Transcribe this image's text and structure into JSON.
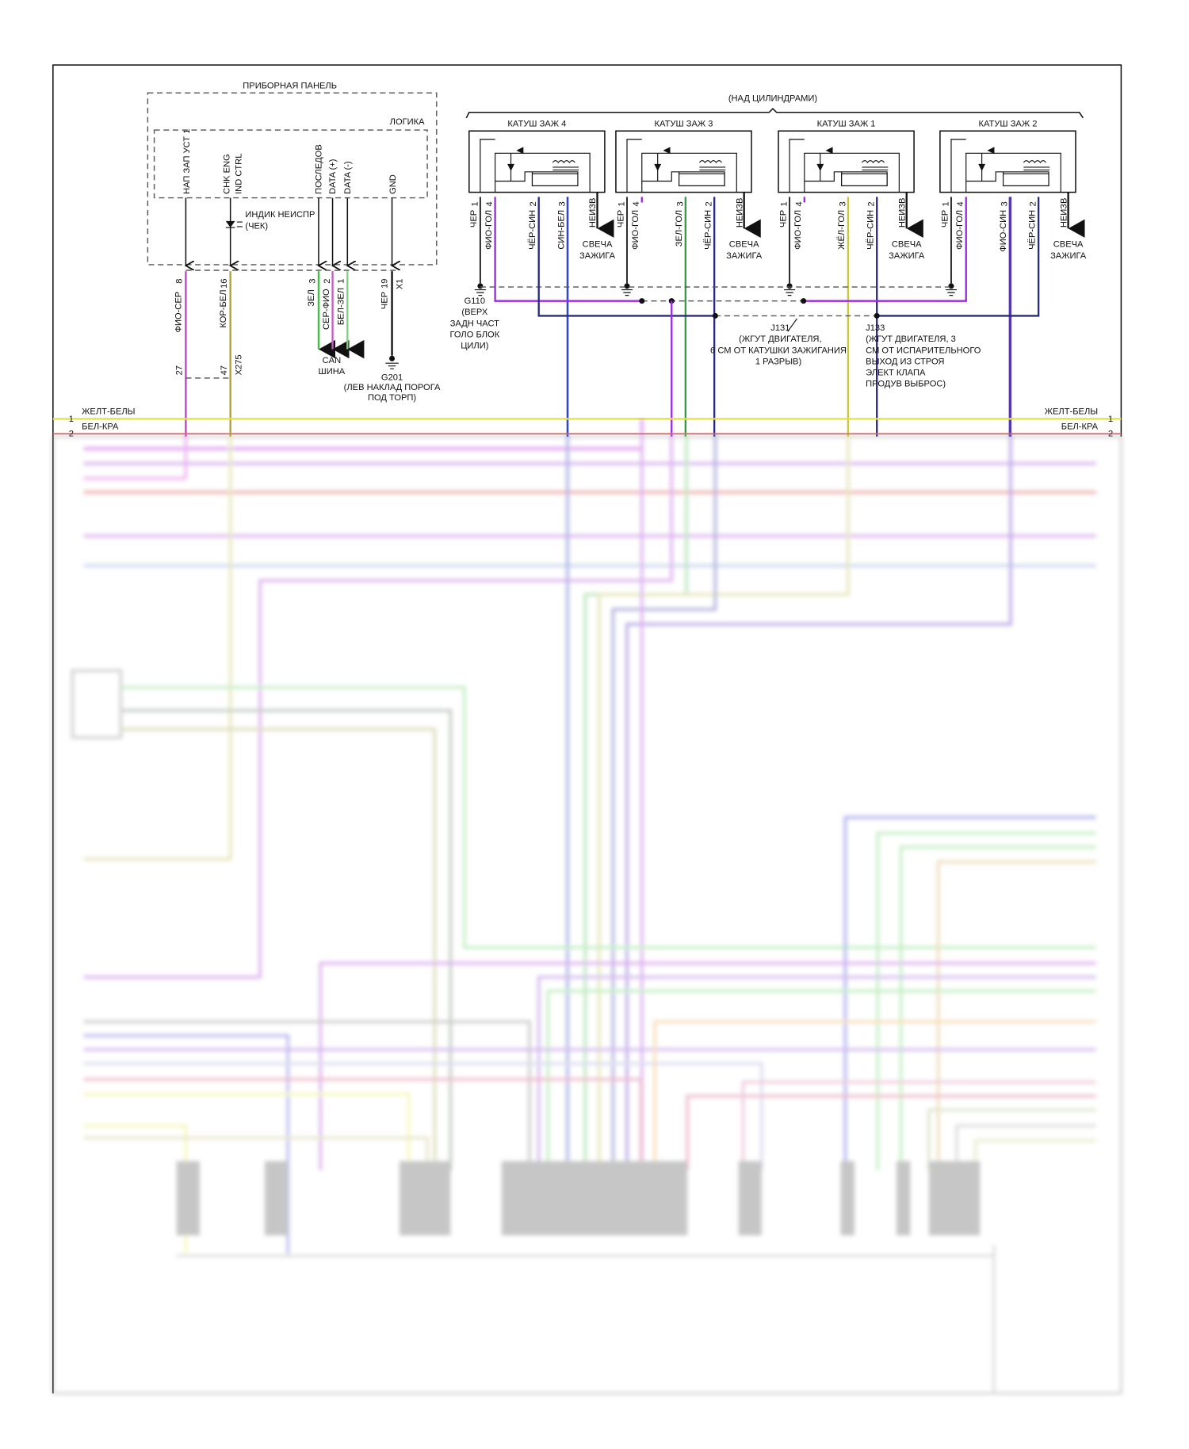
{
  "instrument_panel": {
    "title": "ПРИБОРНАЯ ПАНЕЛЬ",
    "logic_label": "ЛОГИКА",
    "pins": [
      "НАП ЗАП УСТ 1",
      "CHK ENG",
      "IND CTRL",
      "ПОСЛЕДОВ",
      "DATA (+)",
      "DATA (-)",
      "GND"
    ],
    "led_label": [
      "ИНДИК НЕИСПР",
      "(ЧЕК)"
    ],
    "connector_x1": {
      "name": "X1",
      "pins": [
        "8",
        "16",
        "3",
        "2",
        "1",
        "19"
      ]
    },
    "connector_x275": {
      "name": "X275",
      "pins": [
        "27",
        "47"
      ]
    },
    "wires": [
      "ФИО-СЕР",
      "КОР-БЕЛ",
      "ЗЕЛ",
      "СЕР-ФИО",
      "БЕЛ-ЗЕЛ",
      "ЧЕР"
    ],
    "can_label": [
      "CAN",
      "ШИНА"
    ],
    "ground": {
      "id": "G201",
      "desc": [
        "(ЛЕВ НАКЛАД ПОРОГА",
        "ПОД ТОРП)"
      ]
    }
  },
  "coils": {
    "group_label": "(НАД ЦИЛИНДРАМИ)",
    "items": [
      {
        "title": "КАТУШ ЗАЖ 4",
        "pins": [
          {
            "n": "1",
            "w": "ЧЕР",
            "c": "#111111"
          },
          {
            "n": "4",
            "w": "ФИО-ГОЛ",
            "c": "#9a2be0"
          },
          {
            "n": "2",
            "w": "ЧЁР-СИН",
            "c": "#2a2a80"
          },
          {
            "n": "3",
            "w": "СИН-БЕЛ",
            "c": "#3344cc"
          }
        ]
      },
      {
        "title": "КАТУШ ЗАЖ 3",
        "pins": [
          {
            "n": "1",
            "w": "ЧЕР",
            "c": "#111111"
          },
          {
            "n": "4",
            "w": "ФИО-ГОЛ",
            "c": "#9a2be0"
          },
          {
            "n": "3",
            "w": "ЗЕЛ-ГОЛ",
            "c": "#30a040"
          },
          {
            "n": "2",
            "w": "ЧЁР-СИН",
            "c": "#2a2a80"
          }
        ]
      },
      {
        "title": "КАТУШ ЗАЖ 1",
        "pins": [
          {
            "n": "1",
            "w": "ЧЕР",
            "c": "#111111"
          },
          {
            "n": "4",
            "w": "ФИО-ГОЛ",
            "c": "#9a2be0"
          },
          {
            "n": "3",
            "w": "ЖЁЛ-ГОЛ",
            "c": "#c8c840"
          },
          {
            "n": "2",
            "w": "ЧЁР-СИН",
            "c": "#2a2a80"
          }
        ]
      },
      {
        "title": "КАТУШ ЗАЖ 2",
        "pins": [
          {
            "n": "1",
            "w": "ЧЕР",
            "c": "#111111"
          },
          {
            "n": "4",
            "w": "ФИО-ГОЛ",
            "c": "#9a2be0"
          },
          {
            "n": "3",
            "w": "ФИО-СИН",
            "c": "#5533cc"
          },
          {
            "n": "2",
            "w": "ЧЁР-СИН",
            "c": "#2a2a80"
          }
        ]
      }
    ],
    "unknown_label": "НЕИЗВ",
    "plug_label": [
      "СВЕЧА",
      "ЗАЖИГА"
    ]
  },
  "ground_g110": [
    "G110",
    "(ВЕРХ",
    "ЗАДН ЧАСТ",
    "ГОЛО БЛОК",
    "ЦИЛИ)"
  ],
  "splice_j131": [
    "J131",
    "(ЖГУТ ДВИГАТЕЛЯ,",
    "6 СМ ОТ КАТУШКИ ЗАЖИГАНИЯ",
    "1 РАЗРЫВ)"
  ],
  "splice_j133": [
    "J133",
    "(ЖГУТ ДВИГАТЕЛЯ, 3",
    "СМ ОТ ИСПАРИТЕЛЬНОГО",
    "ВЫХОД ИЗ СТРОЯ",
    "ЭЛЕКТ КЛАПА",
    "ПРОДУВ ВЫБРОС)"
  ],
  "bus": {
    "line1": {
      "num": "1",
      "label": "ЖЕЛТ-БЕЛЫ",
      "color": "#e8e040"
    },
    "line2": {
      "num": "2",
      "label": "БЕЛ-КРА",
      "color": "#e06060"
    }
  }
}
